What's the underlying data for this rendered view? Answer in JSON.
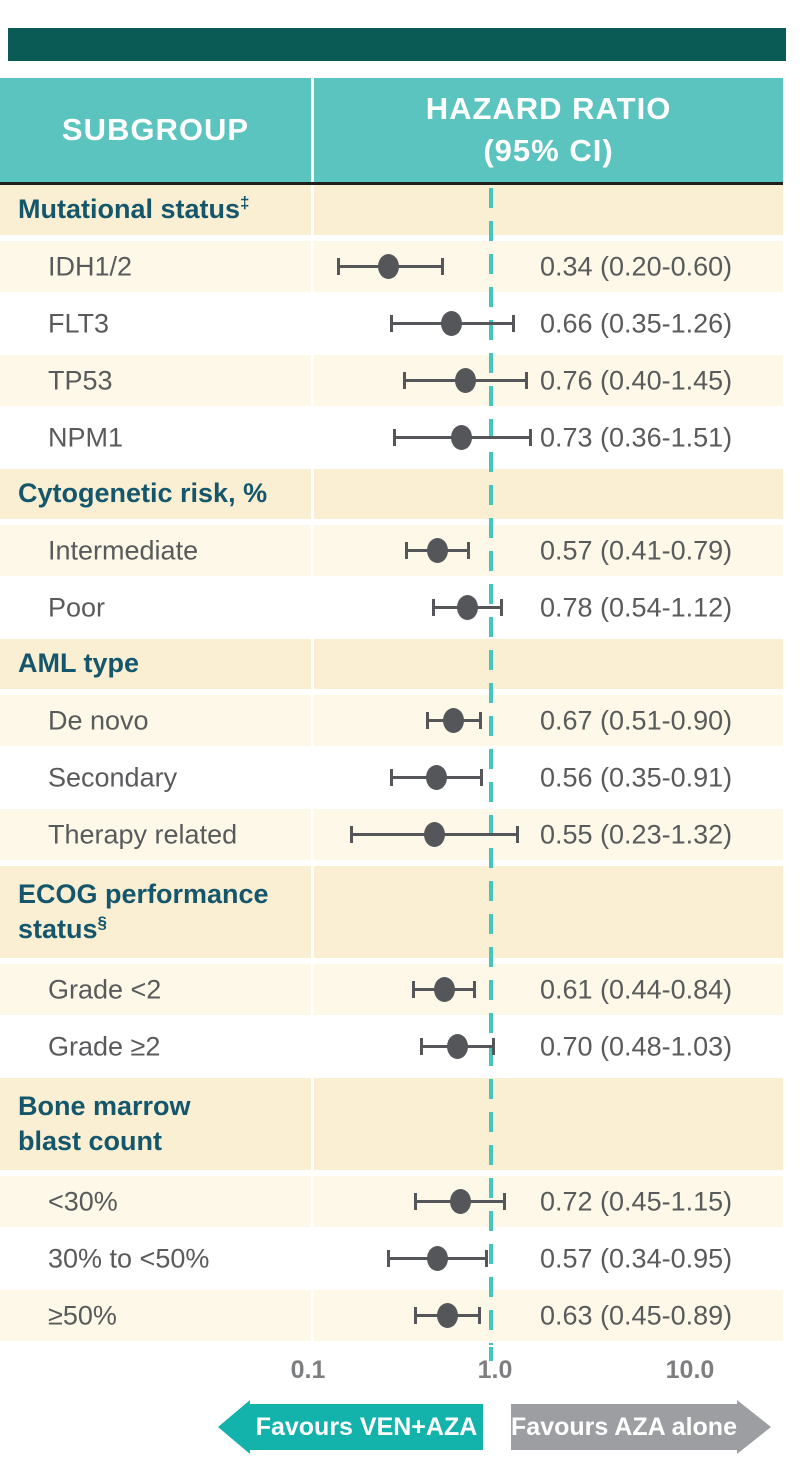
{
  "colors": {
    "header_teal": "#5BC4BF",
    "header_text": "#FFFFFF",
    "header_border": "#201F1D",
    "top_bar": "#0A5A55",
    "cat_bg": "#FAEFD3",
    "light_bg": "#FDF8E8",
    "white_bg": "#FFFFFF",
    "cat_text": "#14566B",
    "row_text": "#595A5C",
    "marker": "#54565A",
    "dash": "#46C5BD",
    "axis_text": "#7D7E80",
    "arrow_teal": "#13B3AC",
    "arrow_gray": "#9C9EA1"
  },
  "header": {
    "col1": "SUBGROUP",
    "col2_line1": "HAZARD RATIO",
    "col2_line2": "(95% CI)"
  },
  "chart_data": {
    "type": "scatter",
    "variant": "forest-plot",
    "xscale": "log",
    "xlim": [
      0.1,
      10.0
    ],
    "reference_line": 1.0,
    "grid": false,
    "legend_position": "none",
    "xticks": [
      {
        "label": "0.1",
        "value": 0.1
      },
      {
        "label": "1.0",
        "value": 1.0
      },
      {
        "label": "10.0",
        "value": 10.0
      }
    ],
    "groups": [
      {
        "label": "Mutational status",
        "sup": "‡",
        "rows": [
          {
            "label": "IDH1/2",
            "hr": 0.34,
            "lo": 0.2,
            "hi": 0.6,
            "text": "0.34 (0.20-0.60)"
          },
          {
            "label": "FLT3",
            "hr": 0.66,
            "lo": 0.35,
            "hi": 1.26,
            "text": "0.66 (0.35-1.26)"
          },
          {
            "label": "TP53",
            "hr": 0.76,
            "lo": 0.4,
            "hi": 1.45,
            "text": "0.76 (0.40-1.45)"
          },
          {
            "label": "NPM1",
            "hr": 0.73,
            "lo": 0.36,
            "hi": 1.51,
            "text": "0.73 (0.36-1.51)"
          }
        ]
      },
      {
        "label": "Cytogenetic risk, %",
        "sup": "",
        "rows": [
          {
            "label": "Intermediate",
            "hr": 0.57,
            "lo": 0.41,
            "hi": 0.79,
            "text": "0.57 (0.41-0.79)"
          },
          {
            "label": "Poor",
            "hr": 0.78,
            "lo": 0.54,
            "hi": 1.12,
            "text": "0.78 (0.54-1.12)"
          }
        ]
      },
      {
        "label": "AML type",
        "sup": "",
        "rows": [
          {
            "label": "De novo",
            "hr": 0.67,
            "lo": 0.51,
            "hi": 0.9,
            "text": "0.67 (0.51-0.90)"
          },
          {
            "label": "Secondary",
            "hr": 0.56,
            "lo": 0.35,
            "hi": 0.91,
            "text": "0.56 (0.35-0.91)"
          },
          {
            "label": "Therapy related",
            "hr": 0.55,
            "lo": 0.23,
            "hi": 1.32,
            "text": "0.55 (0.23-1.32)"
          }
        ]
      },
      {
        "label": "ECOG performance\nstatus",
        "sup": "§",
        "rows": [
          {
            "label": "Grade <2",
            "hr": 0.61,
            "lo": 0.44,
            "hi": 0.84,
            "text": "0.61 (0.44-0.84)"
          },
          {
            "label": "Grade ≥2",
            "hr": 0.7,
            "lo": 0.48,
            "hi": 1.03,
            "text": "0.70 (0.48-1.03)"
          }
        ]
      },
      {
        "label": "Bone marrow\nblast count",
        "sup": "",
        "rows": [
          {
            "label": "<30%",
            "hr": 0.72,
            "lo": 0.45,
            "hi": 1.15,
            "text": "0.72 (0.45-1.15)"
          },
          {
            "label": "30% to <50%",
            "hr": 0.57,
            "lo": 0.34,
            "hi": 0.95,
            "text": "0.57 (0.34-0.95)"
          },
          {
            "label": "≥50%",
            "hr": 0.63,
            "lo": 0.45,
            "hi": 0.89,
            "text": "0.63 (0.45-0.89)"
          }
        ]
      }
    ],
    "annotations": {
      "left_arrow": "Favours VEN+AZA",
      "right_arrow": "Favours AZA alone"
    }
  }
}
